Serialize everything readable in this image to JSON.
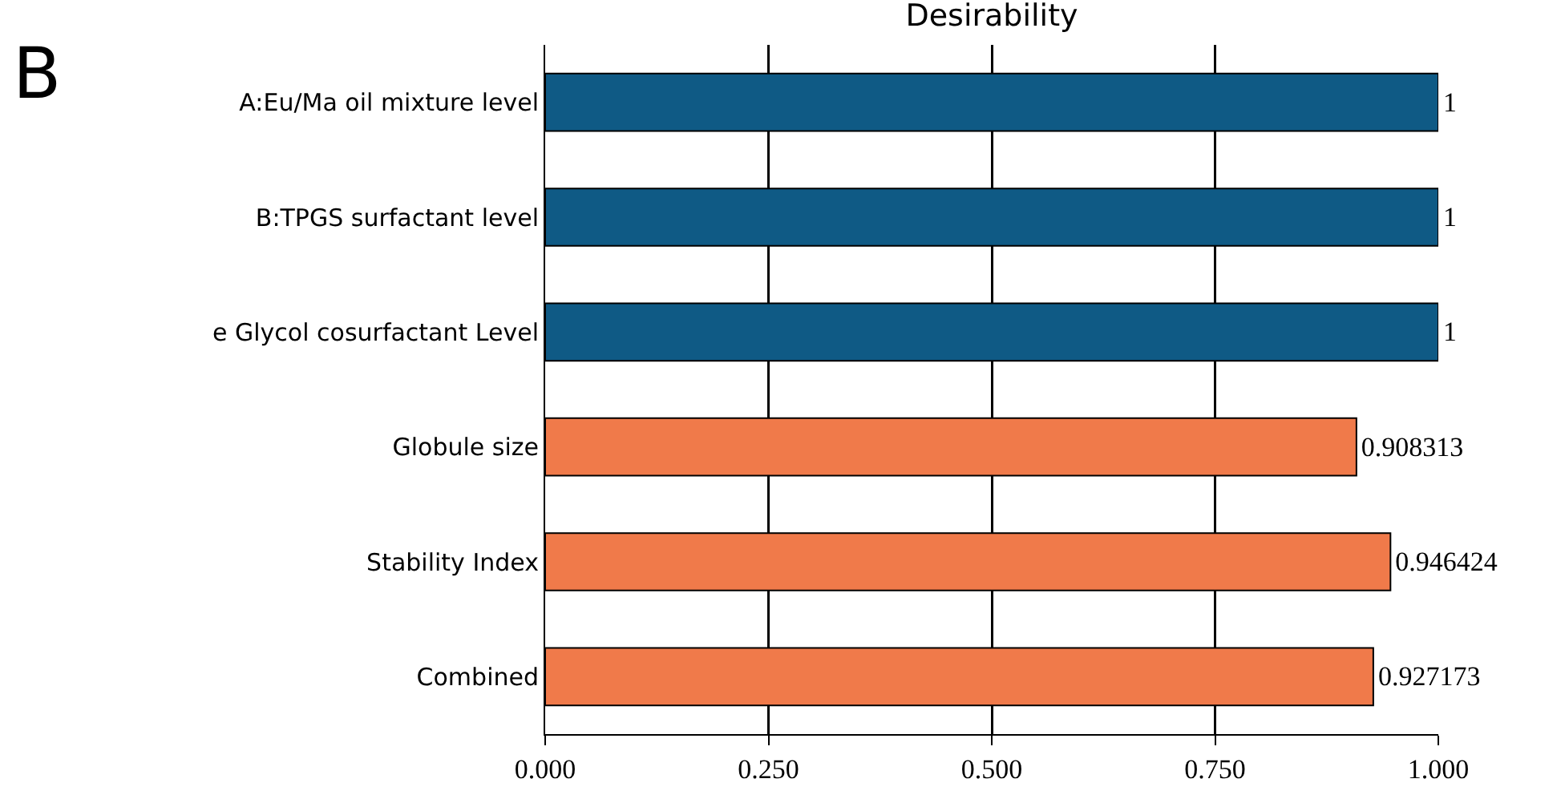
{
  "chart_data": {
    "type": "bar",
    "orientation": "horizontal",
    "title": "Desirability",
    "annotations": [
      "B"
    ],
    "categories": [
      "A:Eu/Ma oil mixture level",
      "B:TPGS surfactant level",
      "e Glycol cosurfactant Level",
      "Globule size",
      "Stability Index",
      "Combined"
    ],
    "values": [
      1,
      1,
      1,
      0.908313,
      0.946424,
      0.927173
    ],
    "colors": [
      "#0f5a85",
      "#0f5a85",
      "#0f5a85",
      "#f07a4a",
      "#f07a4a",
      "#f07a4a"
    ],
    "xlim": [
      0,
      1
    ],
    "xticks": [
      {
        "value": 0,
        "label": "0.000"
      },
      {
        "value": 0.25,
        "label": "0.250"
      },
      {
        "value": 0.5,
        "label": "0.500"
      },
      {
        "value": 0.75,
        "label": "0.750"
      },
      {
        "value": 1,
        "label": "1.000"
      }
    ],
    "grid": "x",
    "data_labels": true
  }
}
